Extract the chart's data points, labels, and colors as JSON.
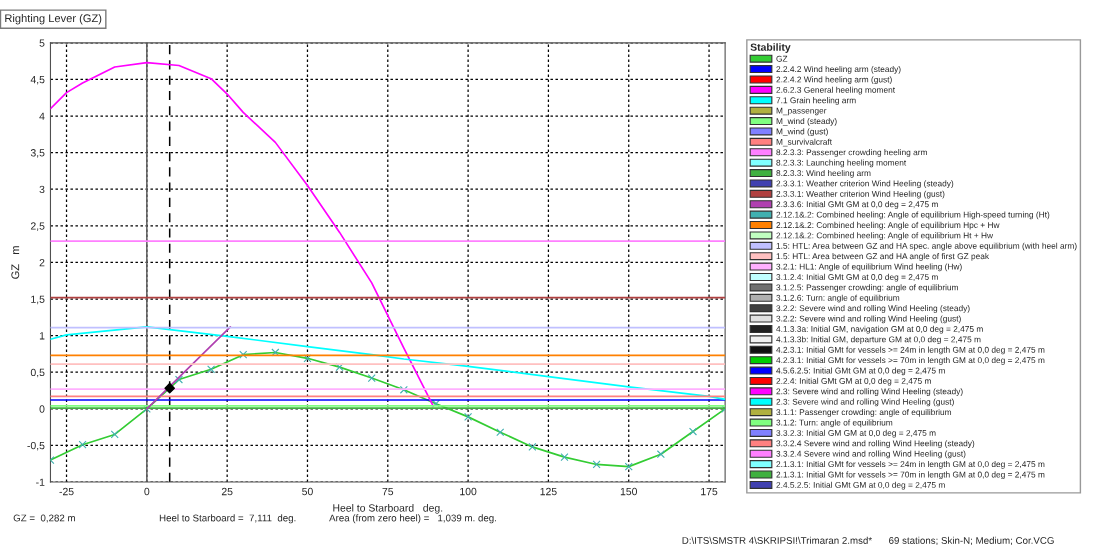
{
  "chart_data": {
    "type": "line",
    "title": "Righting Lever (GZ)",
    "xlabel": "Heel to Starboard   deg.",
    "ylabel": "GZ   m",
    "legend_title": "Stability",
    "xlim": [
      -30,
      180
    ],
    "xticks": [
      -25,
      0,
      25,
      50,
      75,
      100,
      125,
      150,
      175
    ],
    "ylim": [
      -1,
      5
    ],
    "yticks": [
      {
        "value": -1,
        "label": "-1"
      },
      {
        "value": -0.5,
        "label": "-0,5"
      },
      0,
      {
        "value": 0.5,
        "label": "0,5"
      },
      1,
      {
        "value": 1.5,
        "label": "1,5"
      },
      2,
      {
        "value": 2.5,
        "label": "2,5"
      },
      3,
      {
        "value": 3.5,
        "label": "3,5"
      },
      4,
      {
        "value": 4.5,
        "label": "4,5"
      },
      5
    ],
    "grid": true,
    "legend": "right",
    "marker": "none",
    "line_style": "solid",
    "ref_lines": [
      {
        "axis": "x",
        "value": 0,
        "color": "#606060",
        "line_style": "solid"
      },
      {
        "axis": "x",
        "value": 7.111,
        "color": "#000000",
        "line_style": "dashed"
      }
    ],
    "annotations": [
      "GZ =  0,282 m",
      "Heel to Starboard =  7,111  deg.",
      "Area (from zero heel) =   1,039 m. deg.",
      "D:\\ITS\\SMSTR 4\\SKRIPSI!\\Trimaran 2.msd*",
      "69 stations; Skin-N; Medium; Cor.VCG"
    ],
    "series": [
      {
        "name": "GZ",
        "color": "#33cc33",
        "marker": "cross",
        "x": [
          -30,
          -20,
          -10,
          0,
          10,
          20,
          30,
          40,
          50,
          60,
          70,
          80,
          90,
          100,
          110,
          120,
          130,
          140,
          150,
          160,
          170,
          180
        ],
        "values": [
          -0.7,
          -0.49,
          -0.35,
          0,
          0.4,
          0.54,
          0.74,
          0.77,
          0.69,
          0.57,
          0.42,
          0.26,
          0.07,
          -0.11,
          -0.32,
          -0.52,
          -0.66,
          -0.76,
          -0.79,
          -0.62,
          -0.31,
          0
        ]
      },
      {
        "name": "2.2.4.2 Wind heeling arm (steady)",
        "color": "#0000ff",
        "x": [
          -30,
          180
        ],
        "values": [
          0.12,
          0.12
        ]
      },
      {
        "name": "2.2.4.2 Wind heeling arm (gust)",
        "color": "#ff0000"
      },
      {
        "name": "2.6.2.3 General heeling moment",
        "color": "#ff00ff",
        "x": [
          -30,
          -25,
          -20,
          -10,
          0,
          10,
          20,
          25,
          30,
          40,
          50,
          60,
          70,
          80,
          89
        ],
        "values": [
          4.1,
          4.32,
          4.45,
          4.67,
          4.73,
          4.69,
          4.51,
          4.3,
          4.05,
          3.64,
          3.05,
          2.41,
          1.72,
          0.83,
          0.05
        ]
      },
      {
        "name": "7.1 Grain heeling arm",
        "color": "#00ffff",
        "x": [
          -30,
          -25,
          0,
          25,
          50,
          70,
          80,
          100,
          125,
          150,
          175,
          180
        ],
        "values": [
          0.95,
          1.01,
          1.12,
          0.99,
          0.85,
          0.74,
          0.68,
          0.58,
          0.44,
          0.3,
          0.17,
          0.13
        ]
      },
      {
        "name": "M_passenger",
        "color": "#b0b040"
      },
      {
        "name": "M_wind (steady)",
        "color": "#80ff80",
        "x": [
          -30,
          180
        ],
        "values": [
          0.04,
          0.04
        ]
      },
      {
        "name": "M_wind (gust)",
        "color": "#8080ff"
      },
      {
        "name": "M_survivalcraft",
        "color": "#ff8080",
        "x": [
          -30,
          180
        ],
        "values": [
          0.17,
          0.17
        ]
      },
      {
        "name": "8.2.3.3: Passenger crowding heeling arm",
        "color": "#ff80ff",
        "x": [
          -30,
          180
        ],
        "values": [
          2.29,
          2.29
        ]
      },
      {
        "name": "8.2.3.3: Launching heeling moment",
        "color": "#80ffff"
      },
      {
        "name": "8.2.3.3: Wind heeling arm",
        "color": "#40b040",
        "x": [
          -30,
          180
        ],
        "values": [
          0.01,
          0.01
        ]
      },
      {
        "name": "2.3.3.1: Weather criterion Wind Heeling (steady)",
        "color": "#4040b0"
      },
      {
        "name": "2.3.3.1: Weather criterion Wind Heeling (gust)",
        "color": "#b04040",
        "x": [
          -30,
          180
        ],
        "values": [
          1.52,
          1.52
        ]
      },
      {
        "name": "2.3.3.6: Initial GMt GM at 0,0 deg = 2,475 m",
        "color": "#b040b0",
        "x": [
          0,
          26
        ],
        "values": [
          0,
          1.12
        ]
      },
      {
        "name": "2.12.1&.2: Combined heeling: Angle of equilibrium High-speed turning (Ht)",
        "color": "#40b0b0"
      },
      {
        "name": "2.12.1&.2: Combined heeling: Angle of equilibrium Hpc + Hw",
        "color": "#ff8000",
        "x": [
          -30,
          180
        ],
        "values": [
          0.73,
          0.73
        ]
      },
      {
        "name": "2.12.1&.2: Combined heeling: Angle of equilibrium Ht + Hw",
        "color": "#c0ffc0"
      },
      {
        "name": "1.5: HTL: Area between GZ and HA spec. angle above equilibrium (with heel arm)",
        "color": "#c0c0ff",
        "x": [
          -30,
          180
        ],
        "values": [
          1.11,
          1.11
        ]
      },
      {
        "name": "1.5: HTL: Area between GZ and HA angle of first GZ peak",
        "color": "#ffc0c0",
        "x": [
          -30,
          180
        ],
        "values": [
          0.61,
          0.61
        ]
      },
      {
        "name": "3.2.1: HL1: Angle of equilibrium Wind heeling (Hw)",
        "color": "#ffb0ff",
        "x": [
          -30,
          180
        ],
        "values": [
          0.27,
          0.27
        ]
      },
      {
        "name": "3.1.2.4: Initial GMt GM at 0,0 deg = 2,475 m",
        "color": "#c0ffff"
      },
      {
        "name": "3.1.2.5: Passenger crowding: angle of equilibrium",
        "color": "#707070"
      },
      {
        "name": "3.1.2.6: Turn: angle of equilibrium",
        "color": "#b0b0b0"
      },
      {
        "name": "3.2.2: Severe wind and rolling Wind Heeling (steady)",
        "color": "#404040"
      },
      {
        "name": "3.2.2: Severe wind and rolling Wind Heeling (gust)",
        "color": "#e0e0e0"
      },
      {
        "name": "4.1.3.3a: Initial GM, navigation GM at 0,0 deg = 2,475 m",
        "color": "#202020"
      },
      {
        "name": "4.1.3.3b: Initial GM, departure GM at 0,0 deg = 2,475 m",
        "color": "#f0f0f0"
      },
      {
        "name": "4.2.3.1: Initial GMt for vessels >= 24m in length GM at 0,0 deg = 2,475 m",
        "color": "#101010"
      },
      {
        "name": "4.2.3.1: Initial GMt for vessels >= 70m in length GM at 0,0 deg = 2,475 m",
        "color": "#00cc00"
      },
      {
        "name": "4.5.6.2.5: Initial GMt GM at 0,0 deg = 2,475 m",
        "color": "#0000ff"
      },
      {
        "name": "2.2.4: Initial GMt GM at 0,0 deg = 2,475 m",
        "color": "#ff0000"
      },
      {
        "name": "2.3: Severe wind and rolling Wind Heeling (steady)",
        "color": "#ff00ff"
      },
      {
        "name": "2.3: Severe wind and rolling Wind Heeling (gust)",
        "color": "#00ffff"
      },
      {
        "name": "3.1.1: Passenger crowding: angle of equilibrium",
        "color": "#b0b040"
      },
      {
        "name": "3.1.2: Turn: angle of equilibrium",
        "color": "#80ff80"
      },
      {
        "name": "3.3.2.3: Initial GM GM at 0,0 deg = 2,475 m",
        "color": "#8080ff"
      },
      {
        "name": "3.3.2.4 Severe wind and rolling Wind Heeling (steady)",
        "color": "#ff8080"
      },
      {
        "name": "3.3.2.4 Severe wind and rolling Wind Heeling (gust)",
        "color": "#ff80ff"
      },
      {
        "name": "2.1.3.1: Initial GMt for vessels >= 24m in length GM at 0,0 deg = 2,475 m",
        "color": "#80ffff"
      },
      {
        "name": "2.1.3.1: Initial GMt for vessels >= 70m in length GM at 0,0 deg = 2,475 m",
        "color": "#40b040"
      },
      {
        "name": "2.4.5.2.5: Initial GMt GM at 0,0 deg = 2,475 m",
        "color": "#4040b0"
      },
      {
        "type": "scatter",
        "color": "#000000",
        "marker": "diamond",
        "x": [
          7.111
        ],
        "values": [
          0.282
        ]
      }
    ]
  }
}
